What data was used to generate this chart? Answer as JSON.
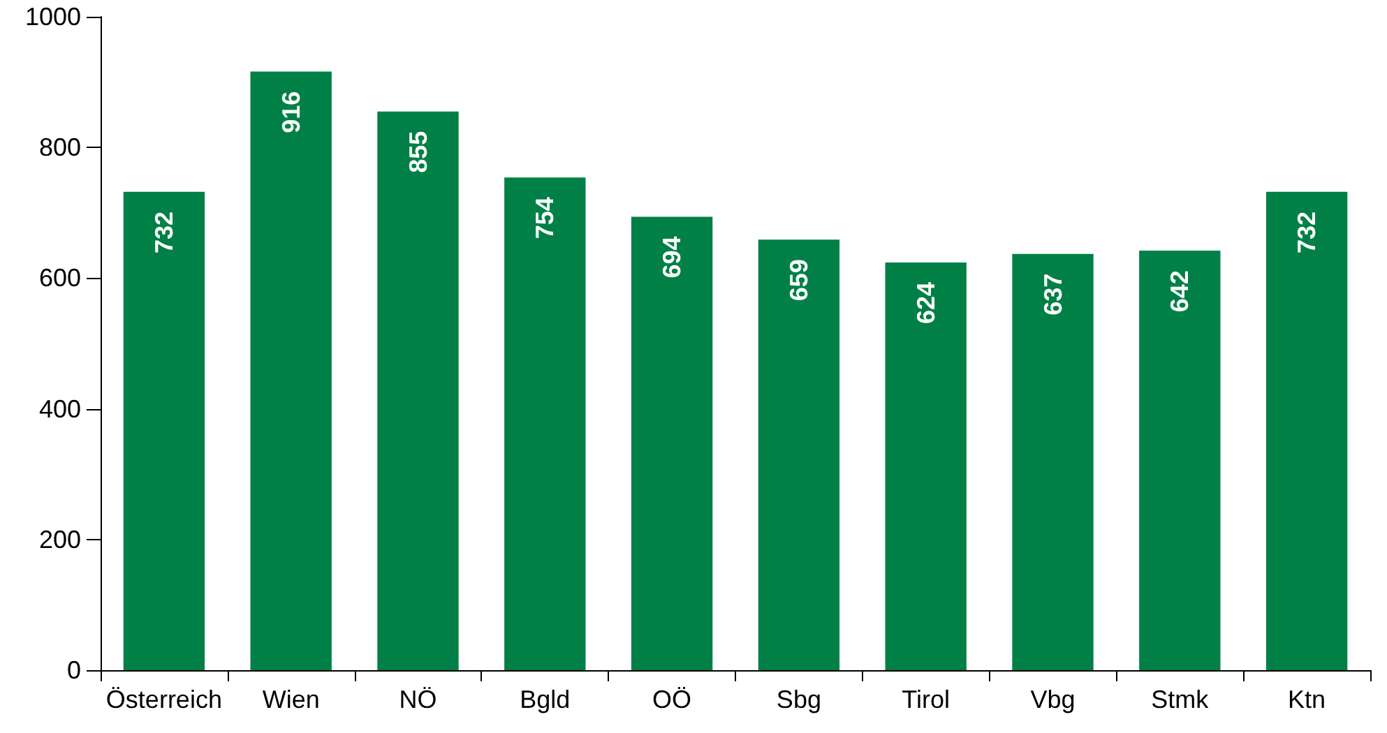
{
  "chart_data": {
    "type": "bar",
    "categories": [
      "Österreich",
      "Wien",
      "NÖ",
      "Bgld",
      "OÖ",
      "Sbg",
      "Tirol",
      "Vbg",
      "Stmk",
      "Ktn"
    ],
    "values": [
      732,
      916,
      855,
      754,
      694,
      659,
      624,
      637,
      642,
      732
    ],
    "color": "#008046",
    "ylim": [
      0,
      1000
    ],
    "yticks": [
      0,
      200,
      400,
      600,
      800,
      1000
    ],
    "grid": false,
    "data_labels": true
  }
}
